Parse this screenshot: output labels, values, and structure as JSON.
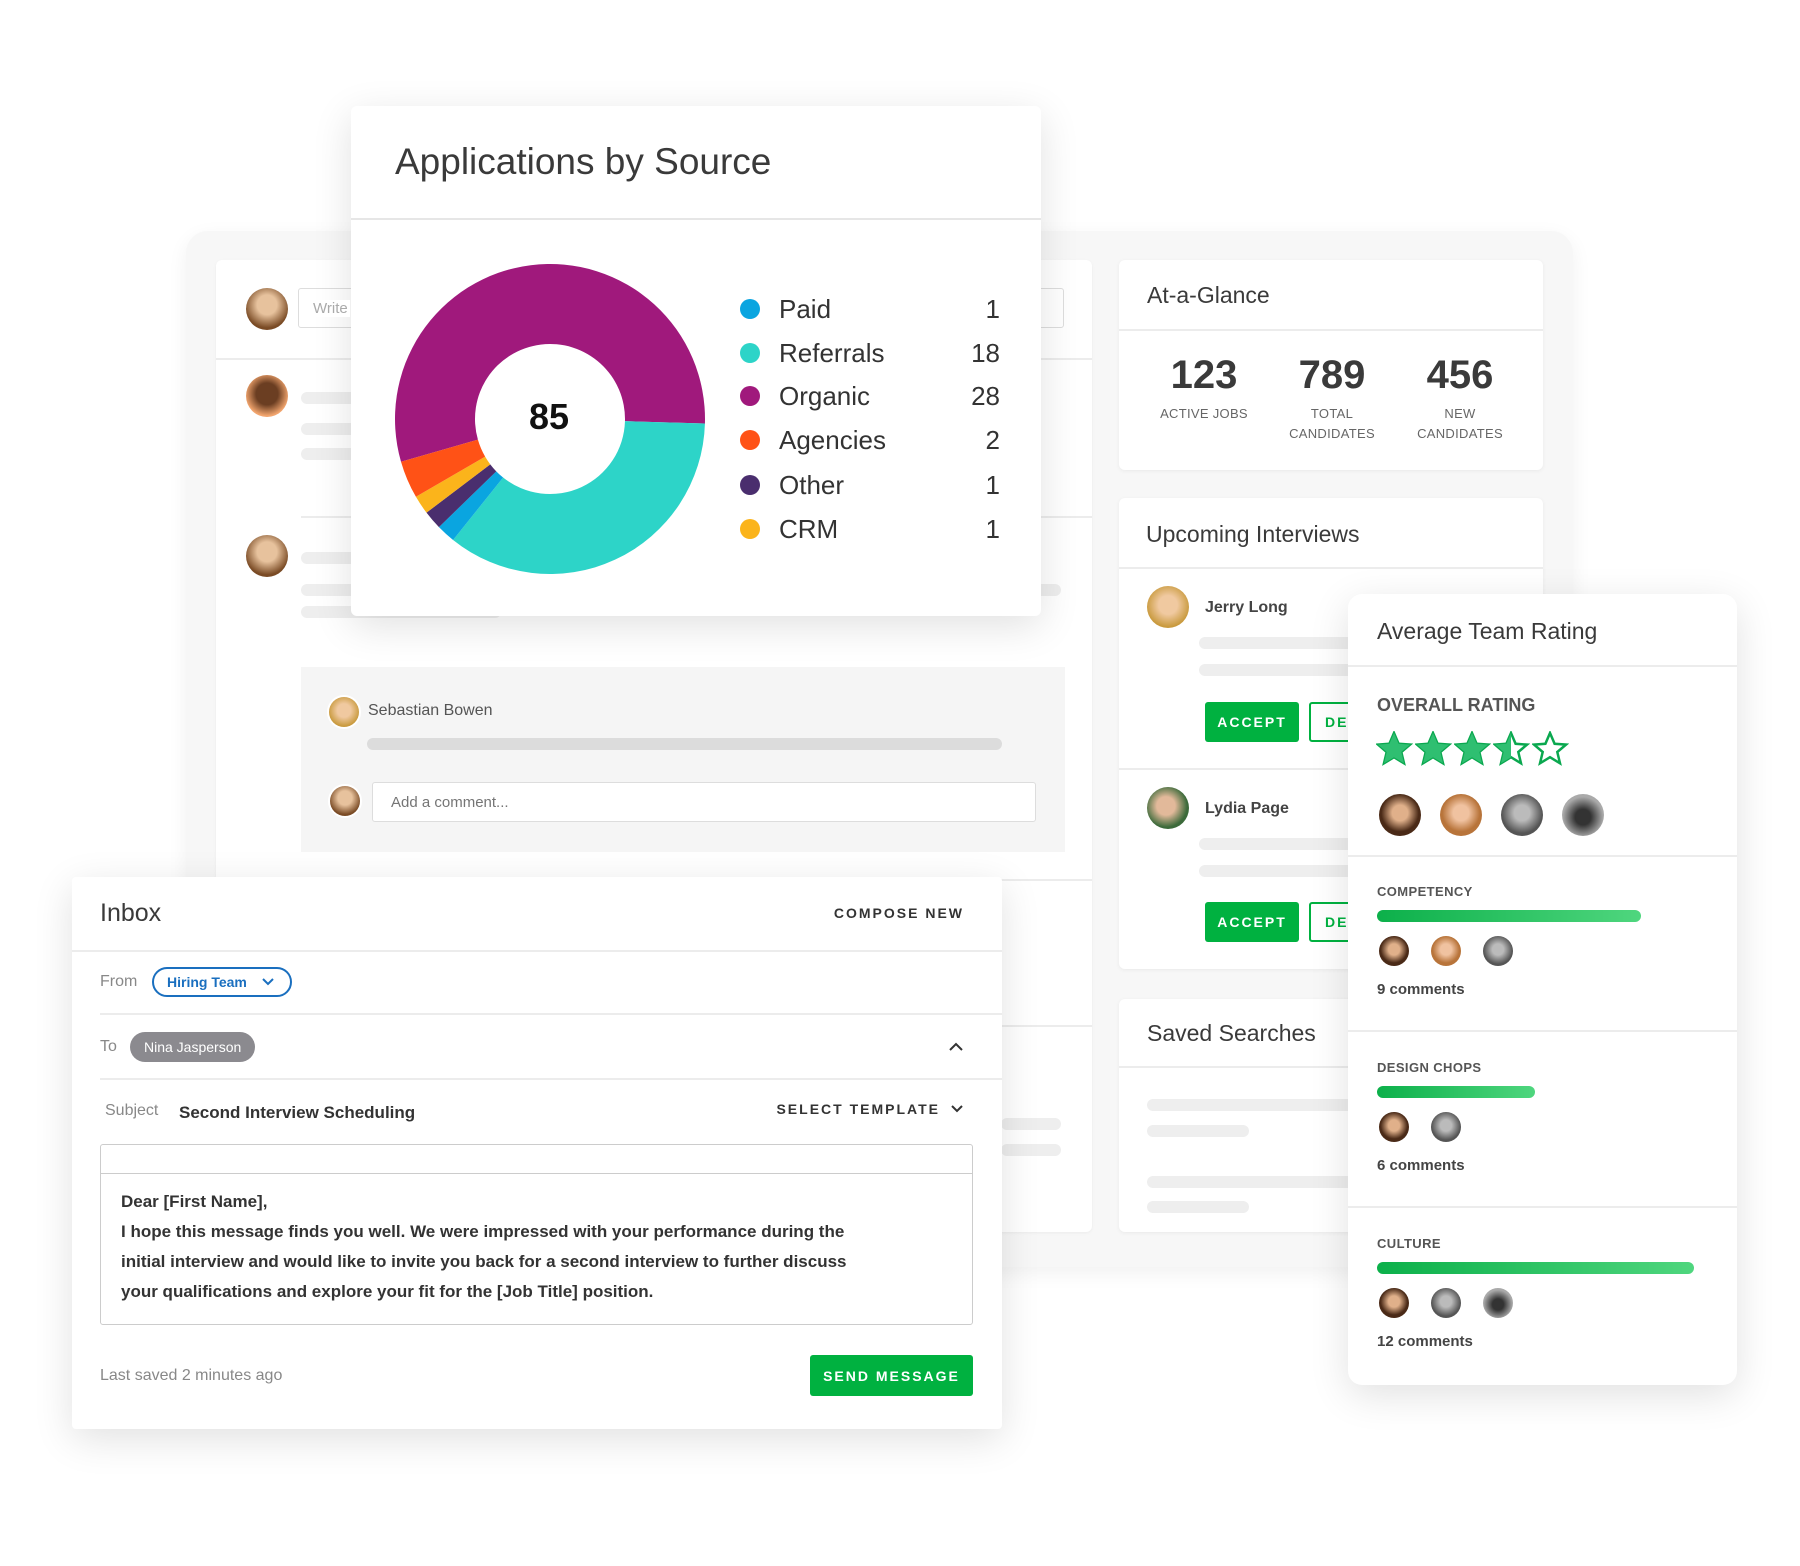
{
  "feed": {
    "composer_placeholder": "Write",
    "comment_author": "Sebastian Bowen",
    "comment_placeholder": "Add a comment..."
  },
  "chart_data": {
    "type": "pie",
    "title": "Applications by Source",
    "center_label": "85",
    "categories": [
      "Paid",
      "Referrals",
      "Organic",
      "Agencies",
      "Other",
      "CRM"
    ],
    "values": [
      1,
      18,
      28,
      2,
      1,
      1
    ],
    "colors": [
      "#0aa5e0",
      "#2dd4c8",
      "#a0197c",
      "#ff5216",
      "#4a2e6e",
      "#fbb41b"
    ],
    "slice_order": [
      "Organic",
      "Referrals",
      "Paid",
      "Other",
      "CRM",
      "Agencies"
    ],
    "legend": "right"
  },
  "glance": {
    "title": "At-a-Glance",
    "stats": [
      {
        "value": "123",
        "label1": "ACTIVE JOBS",
        "label2": ""
      },
      {
        "value": "789",
        "label1": "TOTAL",
        "label2": "CANDIDATES"
      },
      {
        "value": "456",
        "label1": "NEW",
        "label2": "CANDIDATES"
      }
    ]
  },
  "interviews": {
    "title": "Upcoming Interviews",
    "items": [
      {
        "name": "Jerry Long",
        "accept": "ACCEPT",
        "decline": "DECLINE"
      },
      {
        "name": "Lydia Page",
        "accept": "ACCEPT",
        "decline": "DECLINE"
      }
    ]
  },
  "saved": {
    "title": "Saved Searches"
  },
  "rating": {
    "title": "Average Team Rating",
    "overall_label": "OVERALL RATING",
    "overall_stars": 3.5,
    "max_stars": 5,
    "star_color": "#2fbf71",
    "sections": [
      {
        "label": "COMPETENCY",
        "score": 0.8,
        "comments": "9 comments",
        "avatars": 3
      },
      {
        "label": "DESIGN CHOPS",
        "score": 0.48,
        "comments": "6 comments",
        "avatars": 2
      },
      {
        "label": "CULTURE",
        "score": 0.96,
        "comments": "12 comments",
        "avatars": 3
      }
    ]
  },
  "inbox": {
    "title": "Inbox",
    "compose": "COMPOSE NEW",
    "from_label": "From",
    "from_value": "Hiring Team",
    "to_label": "To",
    "to_value": "Nina Jasperson",
    "subject_label": "Subject",
    "subject_value": "Second Interview Scheduling",
    "template": "SELECT TEMPLATE",
    "body": [
      "Dear [First Name],",
      "I hope this message finds you well. We were impressed with your performance during the",
      "initial interview and would like to invite you back for a second interview to further discuss",
      "your qualifications and explore your fit for the [Job Title] position."
    ],
    "saved_status": "Last saved 2 minutes ago",
    "send": "SEND MESSAGE"
  },
  "accent": "#00b140"
}
